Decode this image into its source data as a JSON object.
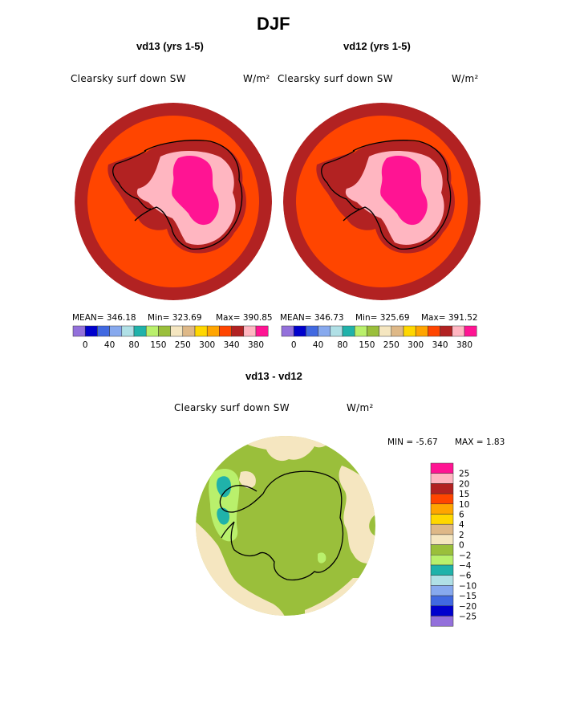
{
  "figure_title": "DJF",
  "panels": [
    {
      "title": "vd13 (yrs 1-5)",
      "variable_label": "Clearsky surf down SW",
      "units_label": "W/m²",
      "stats": {
        "mean": "MEAN= 346.18",
        "min": "Min= 323.69",
        "max": "Max= 390.85"
      }
    },
    {
      "title": "vd12 (yrs 1-5)",
      "variable_label": "Clearsky surf down SW",
      "units_label": "W/m²",
      "stats": {
        "mean": "MEAN= 346.73",
        "min": "Min= 325.69",
        "max": "Max= 391.52"
      }
    },
    {
      "title": "vd13 - vd12",
      "variable_label": "Clearsky surf down SW",
      "units_label": "W/m²",
      "stats": {
        "min": "MIN =   -5.67",
        "max": "MAX =    1.83"
      }
    }
  ],
  "abs_colorbar": {
    "colors": [
      "#9370db",
      "#0000cd",
      "#4169e1",
      "#87a9ee",
      "#b0e0e6",
      "#20b2aa",
      "#b9f06c",
      "#9abf3b",
      "#f5e6c0",
      "#deb887",
      "#ffd700",
      "#ffa500",
      "#ff4500",
      "#b22222",
      "#ffb6c1",
      "#ff1493"
    ],
    "tick_labels": [
      "0",
      "40",
      "80",
      "150",
      "250",
      "300",
      "340",
      "380"
    ]
  },
  "diff_colorbar": {
    "colors": [
      "#ff1493",
      "#ffb6c1",
      "#b22222",
      "#ff4500",
      "#ffa500",
      "#ffd700",
      "#deb887",
      "#f5e6c0",
      "#9abf3b",
      "#b9f06c",
      "#20b2aa",
      "#b0e0e6",
      "#87a9ee",
      "#4169e1",
      "#0000cd",
      "#9370db"
    ],
    "tick_labels": [
      "25",
      "20",
      "15",
      "10",
      "6",
      "4",
      "2",
      "0",
      "−2",
      "−4",
      "−6",
      "−10",
      "−15",
      "−20",
      "−25"
    ]
  },
  "map_colors": {
    "outer_ring": "#b22222",
    "ocean": "#ff4500",
    "coast_band": "#b22222",
    "interior": "#ffb6c1",
    "plateau": "#ff1493",
    "diff_base": "#9abf3b",
    "diff_pos": "#f5e6c0",
    "diff_neg2": "#b9f06c",
    "diff_neg4": "#20b2aa"
  }
}
